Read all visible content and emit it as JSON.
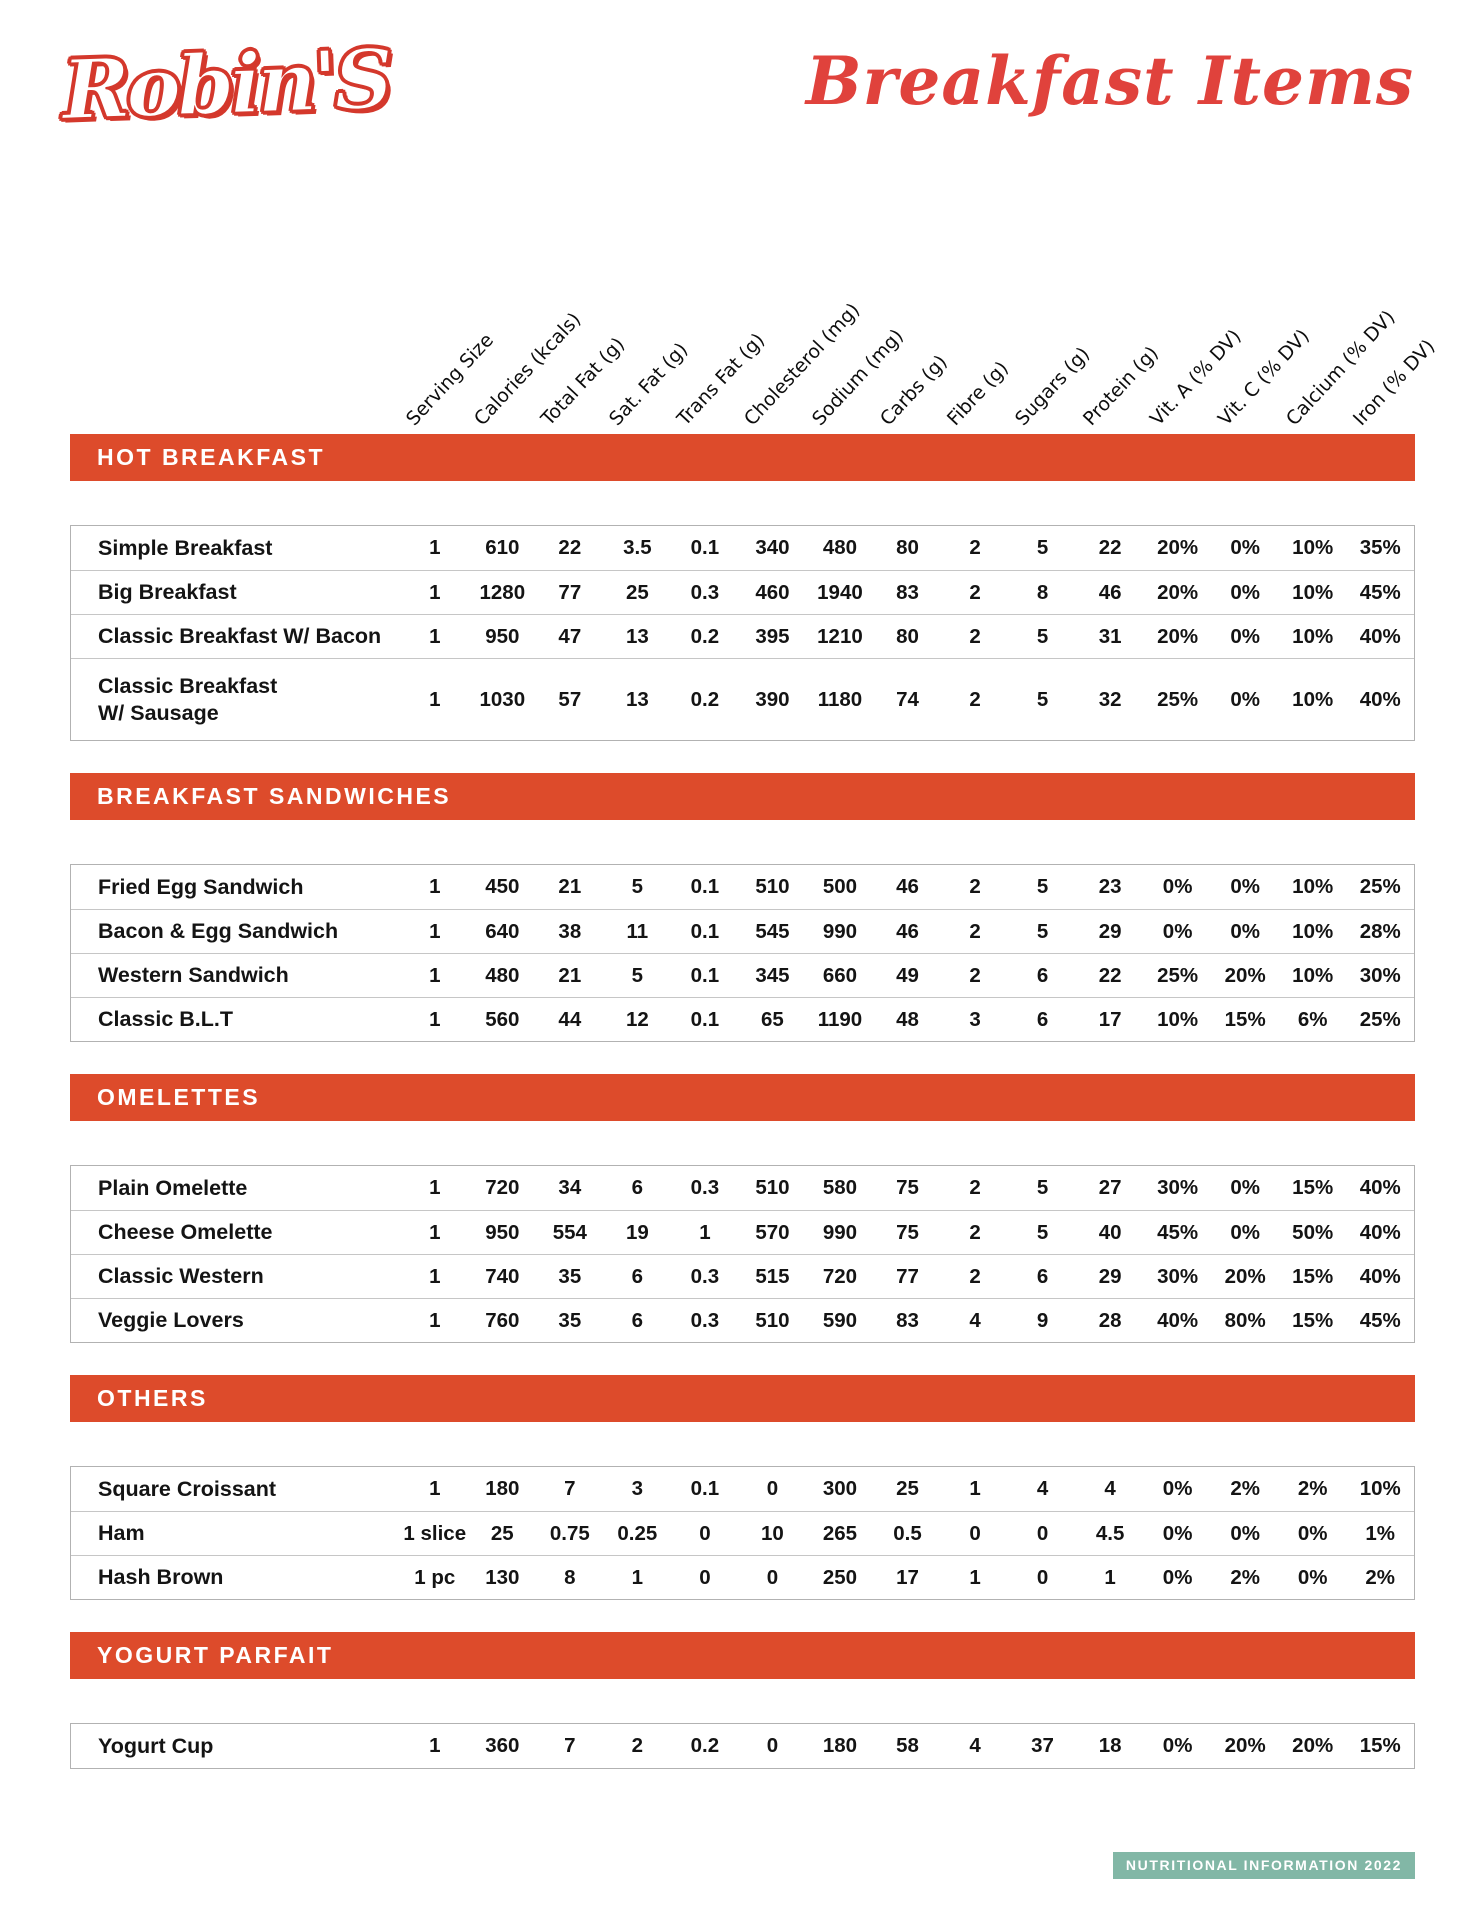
{
  "page": {
    "logo_text": "Robin'S",
    "title_script": "Breakfast Items",
    "footer_badge": "NUTRITIONAL INFORMATION 2022"
  },
  "colors": {
    "banner_orange_red": "#dd4b2b",
    "title_red": "#e0423c",
    "logo_red": "#d4382c",
    "badge_teal": "#82b7a6"
  },
  "columns": [
    "Serving Size",
    "Calories (kcals)",
    "Total Fat (g)",
    "Sat. Fat (g)",
    "Trans Fat (g)",
    "Cholesterol (mg)",
    "Sodium (mg)",
    "Carbs (g)",
    "Fibre (g)",
    "Sugars (g)",
    "Protein (g)",
    "Vit. A (% DV)",
    "Vit. C (% DV)",
    "Calcium (% DV)",
    "Iron (% DV)"
  ],
  "sections": [
    {
      "label": "HOT BREAKFAST",
      "rows": [
        {
          "name": "Simple Breakfast",
          "values": [
            "1",
            "610",
            "22",
            "3.5",
            "0.1",
            "340",
            "480",
            "80",
            "2",
            "5",
            "22",
            "20%",
            "0%",
            "10%",
            "35%"
          ]
        },
        {
          "name": "Big Breakfast",
          "values": [
            "1",
            "1280",
            "77",
            "25",
            "0.3",
            "460",
            "1940",
            "83",
            "2",
            "8",
            "46",
            "20%",
            "0%",
            "10%",
            "45%"
          ]
        },
        {
          "name": "Classic Breakfast W/ Bacon",
          "values": [
            "1",
            "950",
            "47",
            "13",
            "0.2",
            "395",
            "1210",
            "80",
            "2",
            "5",
            "31",
            "20%",
            "0%",
            "10%",
            "40%"
          ]
        },
        {
          "name": "Classic Breakfast\nW/ Sausage",
          "values": [
            "1",
            "1030",
            "57",
            "13",
            "0.2",
            "390",
            "1180",
            "74",
            "2",
            "5",
            "32",
            "25%",
            "0%",
            "10%",
            "40%"
          ]
        }
      ]
    },
    {
      "label": "BREAKFAST SANDWICHES",
      "rows": [
        {
          "name": "Fried Egg Sandwich",
          "values": [
            "1",
            "450",
            "21",
            "5",
            "0.1",
            "510",
            "500",
            "46",
            "2",
            "5",
            "23",
            "0%",
            "0%",
            "10%",
            "25%"
          ]
        },
        {
          "name": "Bacon & Egg Sandwich",
          "values": [
            "1",
            "640",
            "38",
            "11",
            "0.1",
            "545",
            "990",
            "46",
            "2",
            "5",
            "29",
            "0%",
            "0%",
            "10%",
            "28%"
          ]
        },
        {
          "name": "Western Sandwich",
          "values": [
            "1",
            "480",
            "21",
            "5",
            "0.1",
            "345",
            "660",
            "49",
            "2",
            "6",
            "22",
            "25%",
            "20%",
            "10%",
            "30%"
          ]
        },
        {
          "name": "Classic B.L.T",
          "values": [
            "1",
            "560",
            "44",
            "12",
            "0.1",
            "65",
            "1190",
            "48",
            "3",
            "6",
            "17",
            "10%",
            "15%",
            "6%",
            "25%"
          ]
        }
      ]
    },
    {
      "label": "OMELETTES",
      "rows": [
        {
          "name": "Plain Omelette",
          "values": [
            "1",
            "720",
            "34",
            "6",
            "0.3",
            "510",
            "580",
            "75",
            "2",
            "5",
            "27",
            "30%",
            "0%",
            "15%",
            "40%"
          ]
        },
        {
          "name": "Cheese Omelette",
          "values": [
            "1",
            "950",
            "554",
            "19",
            "1",
            "570",
            "990",
            "75",
            "2",
            "5",
            "40",
            "45%",
            "0%",
            "50%",
            "40%"
          ]
        },
        {
          "name": "Classic Western",
          "values": [
            "1",
            "740",
            "35",
            "6",
            "0.3",
            "515",
            "720",
            "77",
            "2",
            "6",
            "29",
            "30%",
            "20%",
            "15%",
            "40%"
          ]
        },
        {
          "name": "Veggie Lovers",
          "values": [
            "1",
            "760",
            "35",
            "6",
            "0.3",
            "510",
            "590",
            "83",
            "4",
            "9",
            "28",
            "40%",
            "80%",
            "15%",
            "45%"
          ]
        }
      ]
    },
    {
      "label": "OTHERS",
      "rows": [
        {
          "name": "Square Croissant",
          "values": [
            "1",
            "180",
            "7",
            "3",
            "0.1",
            "0",
            "300",
            "25",
            "1",
            "4",
            "4",
            "0%",
            "2%",
            "2%",
            "10%"
          ]
        },
        {
          "name": "Ham",
          "values": [
            "1 slice",
            "25",
            "0.75",
            "0.25",
            "0",
            "10",
            "265",
            "0.5",
            "0",
            "0",
            "4.5",
            "0%",
            "0%",
            "0%",
            "1%"
          ]
        },
        {
          "name": "Hash Brown",
          "values": [
            "1 pc",
            "130",
            "8",
            "1",
            "0",
            "0",
            "250",
            "17",
            "1",
            "0",
            "1",
            "0%",
            "2%",
            "0%",
            "2%"
          ]
        }
      ]
    },
    {
      "label": "YOGURT PARFAIT",
      "rows": [
        {
          "name": "Yogurt Cup",
          "values": [
            "1",
            "360",
            "7",
            "2",
            "0.2",
            "0",
            "180",
            "58",
            "4",
            "37",
            "18",
            "0%",
            "20%",
            "20%",
            "15%"
          ]
        }
      ]
    }
  ]
}
